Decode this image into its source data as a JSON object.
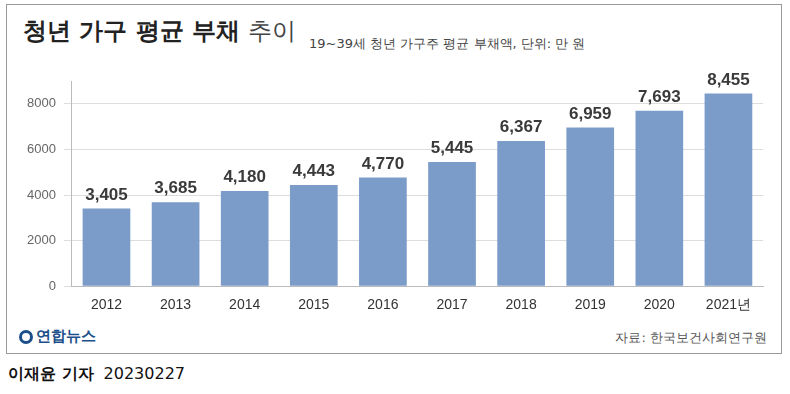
{
  "chart_data": {
    "type": "bar",
    "title": "청년 가구 평균 부채 추이",
    "subtitle": "19~39세 청년 가구주 평균 부채액, 단위: 만 원",
    "categories": [
      "2012",
      "2013",
      "2014",
      "2015",
      "2016",
      "2017",
      "2018",
      "2019",
      "2020",
      "2021년"
    ],
    "values": [
      3405,
      3685,
      4180,
      4443,
      4770,
      5445,
      6367,
      6959,
      7693,
      8455
    ],
    "value_labels": [
      "3,405",
      "3,685",
      "4,180",
      "4,443",
      "4,770",
      "5,445",
      "6,367",
      "6,959",
      "7,693",
      "8,455"
    ],
    "data_labels": true,
    "color": "#7b9bc9",
    "ylim": [
      0,
      9000
    ],
    "yticks": [
      0,
      2000,
      4000,
      6000,
      8000
    ],
    "grid": true,
    "source": "자료: 한국보건사회연구원",
    "logo": "연합뉴스",
    "reporter": "이재윤 기자",
    "date": "20230227"
  }
}
